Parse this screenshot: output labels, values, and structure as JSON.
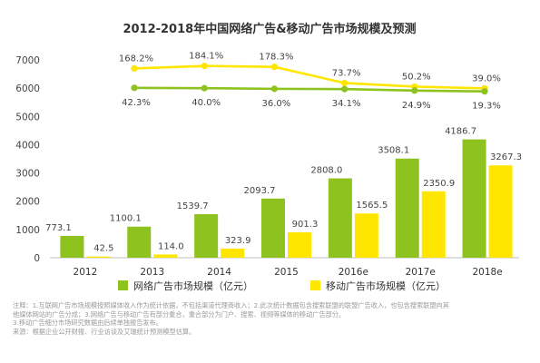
{
  "chart_data": {
    "type": "bar",
    "title": "2012-2018年中国网络广告&移动广告市场规模及预测",
    "categories": [
      "2012",
      "2013",
      "2014",
      "2015",
      "2016e",
      "2017e",
      "2018e"
    ],
    "ylim": [
      0,
      7000
    ],
    "yticks": [
      0,
      1000,
      2000,
      3000,
      4000,
      5000,
      6000,
      7000
    ],
    "series": [
      {
        "name": "网络广告市场规模（亿元）",
        "color": "#8dc21f",
        "values": [
          773.1,
          1100.1,
          1539.7,
          2093.7,
          2808.0,
          3508.1,
          4186.7
        ],
        "labels": [
          "773.1",
          "1100.1",
          "1539.7",
          "2093.7",
          "2808.0",
          "3508.1",
          "4186.7"
        ]
      },
      {
        "name": "移动广告市场规模（亿元）",
        "color": "#ffe600",
        "values": [
          42.5,
          114.0,
          323.9,
          901.3,
          1565.5,
          2350.9,
          3267.3
        ],
        "labels": [
          "42.5",
          "114.0",
          "323.9",
          "901.3",
          "1565.5",
          "2350.9",
          "3267.3"
        ]
      }
    ],
    "growth_lines": [
      {
        "color": "#ffe600",
        "values": [
          168.2,
          184.1,
          178.3,
          73.7,
          50.2,
          39.0
        ],
        "labels": [
          "168.2%",
          "184.1%",
          "178.3%",
          "73.7%",
          "50.2%",
          "39.0%"
        ]
      },
      {
        "color": "#8dc21f",
        "values": [
          42.3,
          40.0,
          36.0,
          34.1,
          24.9,
          19.3
        ],
        "labels": [
          "42.3%",
          "40.0%",
          "36.0%",
          "34.1%",
          "24.9%",
          "19.3%"
        ]
      }
    ],
    "legend_position": "bottom"
  },
  "notes": [
    "注释：1.互联网广告市场规模按照媒体收入作为统计依据，不包括渠道代理商收入；2.此次统计数据包含搜索联盟的联盟广告收入，也包含搜索联盟向其",
    "他媒体网站的广告分成；3.网络广告与移动广告有部分重合，重合部分为门户、搜索、视频等媒体的移动广告部分。",
    "3.移动广告细分市场研究数据由后续单独报告发布。",
    "来源：根据企业公开财报、行业访谈及艾瑞统计预测模型估算。"
  ]
}
